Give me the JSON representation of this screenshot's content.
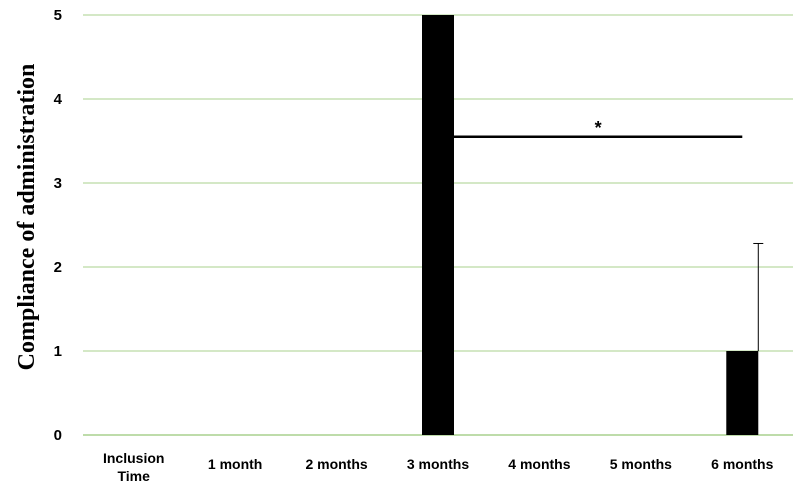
{
  "chart_data": {
    "type": "bar",
    "title": "",
    "xlabel": "",
    "ylabel": "Compliance of administration",
    "categories": [
      [
        "Inclusion",
        "Time"
      ],
      [
        "1 month"
      ],
      [
        "2 months"
      ],
      [
        "3 months"
      ],
      [
        "4 months"
      ],
      [
        "5 months"
      ],
      [
        "6 months"
      ]
    ],
    "values": [
      0,
      0,
      0,
      5,
      0,
      0,
      1
    ],
    "error_upper": [
      0,
      0,
      0,
      0,
      0,
      0,
      1.28
    ],
    "ylim": [
      0,
      5
    ],
    "yticks": [
      0,
      1,
      2,
      3,
      4,
      5
    ],
    "grid": true,
    "legend": "none",
    "annotations": [
      {
        "text": "*",
        "type": "significance-bracket",
        "from_category": 3,
        "to_category": 6,
        "y": 3.55
      }
    ],
    "colors": {
      "bar": "#000000",
      "grid": "#a9d18e",
      "axis": "#a9d18e",
      "text": "#000000"
    }
  }
}
